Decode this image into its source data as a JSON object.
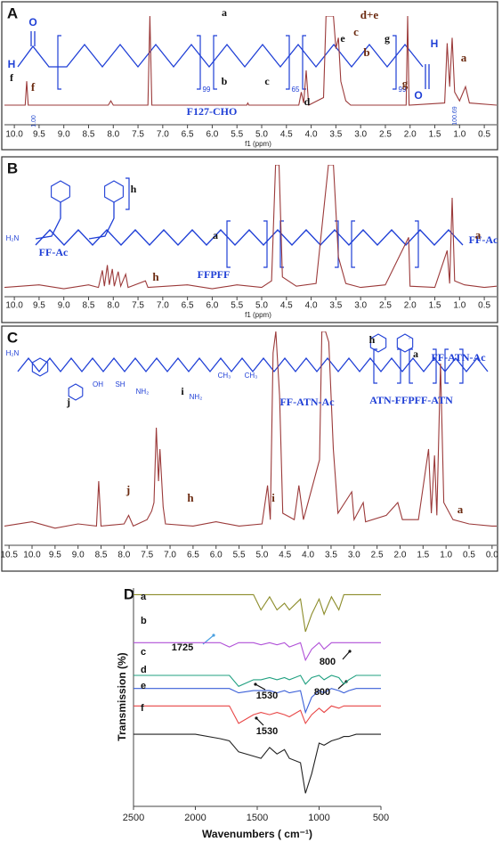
{
  "chart_data": [
    {
      "type": "line",
      "label": "A",
      "xlabel": "f1 (ppm)",
      "xlim": [
        10.2,
        0.25
      ],
      "ylim": [
        0,
        100
      ],
      "xticks": [
        {
          "value": 10,
          "label": "10.0"
        },
        9.5,
        {
          "value": 9,
          "label": "9.0"
        },
        8.5,
        {
          "value": 8,
          "label": "8.0"
        },
        7.5,
        {
          "value": 7,
          "label": "7.0"
        },
        6.5,
        {
          "value": 6,
          "label": "6.0"
        },
        5.5,
        {
          "value": 5,
          "label": "5.0"
        },
        4.5,
        {
          "value": 4,
          "label": "4.0"
        },
        3.5,
        {
          "value": 3,
          "label": "3.0"
        },
        2.5,
        {
          "value": 2,
          "label": "2.0"
        },
        1.5,
        {
          "value": 1,
          "label": "1.0"
        },
        0.5
      ],
      "x": [
        10.2,
        9.78,
        9.75,
        9.72,
        8.1,
        8.05,
        8.0,
        7.3,
        7.26,
        7.22,
        5.3,
        5.28,
        5.26,
        4.25,
        4.2,
        4.15,
        4.1,
        4.05,
        3.75,
        3.7,
        3.65,
        3.6,
        3.55,
        3.5,
        3.45,
        3.4,
        3.3,
        3.2,
        2.08,
        2.05,
        2.02,
        1.3,
        1.25,
        1.2,
        1.15,
        1.1,
        1.0,
        0.88,
        0.8,
        0.25
      ],
      "series": [
        {
          "color": "#9b3a3a",
          "values": [
            18,
            18,
            40,
            18,
            18,
            22,
            18,
            18,
            100,
            18,
            18,
            20,
            18,
            18,
            30,
            20,
            50,
            18,
            25,
            100,
            100,
            100,
            100,
            70,
            80,
            40,
            22,
            18,
            18,
            100,
            18,
            20,
            75,
            35,
            80,
            30,
            22,
            35,
            20,
            18
          ]
        }
      ],
      "annotations": [
        "O",
        "H",
        "f",
        "a",
        "b",
        "c",
        "d",
        "e",
        "g",
        "99",
        "65",
        "99",
        "H",
        "O",
        "F127-CHO",
        "f",
        "d+e",
        "c",
        "b",
        "g",
        "a",
        "1.00",
        "100.69"
      ]
    },
    {
      "type": "line",
      "label": "B",
      "xlabel": "f1 (ppm)",
      "xlim": [
        10.2,
        0.25
      ],
      "ylim": [
        0,
        100
      ],
      "xticks": [
        {
          "value": 10,
          "label": "10.0"
        },
        9.5,
        {
          "value": 9,
          "label": "9.0"
        },
        8.5,
        {
          "value": 8,
          "label": "8.0"
        },
        7.5,
        {
          "value": 7,
          "label": "7.0"
        },
        6.5,
        {
          "value": 6,
          "label": "6.0"
        },
        5.5,
        {
          "value": 5,
          "label": "5.0"
        },
        4.5,
        {
          "value": 4,
          "label": "4.0"
        },
        3.5,
        {
          "value": 3,
          "label": "3.0"
        },
        2.5,
        {
          "value": 2,
          "label": "2.0"
        },
        1.5,
        {
          "value": 1,
          "label": "1.0"
        },
        0.5
      ],
      "x": [
        10.2,
        9.5,
        9.0,
        8.5,
        8.3,
        8.22,
        8.18,
        8.12,
        8.08,
        8.02,
        7.98,
        7.9,
        7.85,
        7.75,
        7.7,
        7.35,
        7.3,
        6.5,
        6.0,
        5.5,
        5.0,
        4.8,
        4.72,
        4.65,
        4.58,
        4.3,
        3.9,
        3.65,
        3.55,
        3.45,
        3.3,
        3.0,
        2.5,
        2.03,
        2.0,
        1.5,
        1.25,
        1.2,
        1.15,
        1.1,
        0.9,
        0.5,
        0.25
      ],
      "series": [
        {
          "color": "#9b3a3a",
          "values": [
            7,
            9,
            6,
            9,
            7,
            20,
            8,
            24,
            9,
            21,
            8,
            19,
            8,
            17,
            7,
            12,
            7,
            9,
            6,
            9,
            7,
            12,
            100,
            100,
            15,
            8,
            10,
            100,
            100,
            30,
            10,
            7,
            9,
            45,
            8,
            7,
            35,
            10,
            75,
            12,
            9,
            7,
            8
          ]
        }
      ],
      "annotations": [
        "h",
        "H₂N",
        "FF-Ac",
        "a",
        "FFPFF",
        "FF-Ac",
        "h",
        "a"
      ]
    },
    {
      "type": "line",
      "label": "C",
      "xlim": [
        10.6,
        -0.1
      ],
      "ylim": [
        0,
        100
      ],
      "xticks": [
        10.5,
        {
          "value": 10,
          "label": "10.0"
        },
        9.5,
        {
          "value": 9,
          "label": "9.0"
        },
        8.5,
        {
          "value": 8,
          "label": "8.0"
        },
        7.5,
        {
          "value": 7,
          "label": "7.0"
        },
        6.5,
        {
          "value": 6,
          "label": "6.0"
        },
        5.5,
        {
          "value": 5,
          "label": "5.0"
        },
        4.5,
        {
          "value": 4,
          "label": "4.0"
        },
        3.5,
        {
          "value": 3,
          "label": "3.0"
        },
        2.5,
        {
          "value": 2,
          "label": "2.0"
        },
        1.5,
        {
          "value": 1,
          "label": "1.0"
        },
        0.5,
        {
          "value": 0,
          "label": "0.0"
        }
      ],
      "x": [
        10.6,
        10.0,
        9.5,
        9.0,
        8.6,
        8.55,
        8.5,
        8.0,
        7.9,
        7.8,
        7.5,
        7.4,
        7.35,
        7.3,
        7.25,
        7.22,
        7.15,
        7.1,
        6.5,
        6.0,
        5.5,
        5.0,
        4.88,
        4.82,
        4.76,
        4.7,
        4.62,
        4.55,
        4.3,
        4.2,
        4.1,
        3.75,
        3.7,
        3.62,
        3.55,
        3.45,
        3.35,
        3.05,
        3.0,
        2.8,
        2.75,
        2.3,
        2.05,
        1.95,
        1.6,
        1.38,
        1.32,
        1.25,
        1.2,
        1.12,
        1.05,
        0.85,
        0.5,
        0.0,
        -0.1
      ],
      "series": [
        {
          "color": "#9b3a3a",
          "values": [
            9,
            11,
            8,
            10,
            9,
            30,
            9,
            10,
            14,
            9,
            12,
            16,
            20,
            55,
            30,
            45,
            18,
            10,
            9,
            11,
            9,
            10,
            28,
            12,
            90,
            100,
            70,
            15,
            12,
            28,
            12,
            40,
            100,
            100,
            95,
            45,
            15,
            25,
            12,
            20,
            11,
            14,
            20,
            12,
            12,
            45,
            15,
            42,
            14,
            85,
            20,
            12,
            10,
            9,
            9
          ]
        }
      ],
      "annotations": [
        "H₂N",
        "j",
        "OH",
        "SH",
        "NH₂",
        "NH₂",
        "i",
        "CH₃",
        "CH₃",
        "FF-ATN-Ac",
        "h",
        "a",
        "FF-ATN-Ac",
        "ATN-FFPFF-ATN",
        "j",
        "h",
        "i",
        "a"
      ]
    },
    {
      "type": "line",
      "label": "D",
      "xlabel": "Wavenumbers ( cm⁻¹)",
      "ylabel": "Transmission (%)",
      "xlim": [
        2500,
        500
      ],
      "ylim": [
        0,
        100
      ],
      "xticks": [
        2500,
        2000,
        1500,
        1000,
        500
      ],
      "x": [
        2500,
        2000,
        1800,
        1725,
        1650,
        1530,
        1470,
        1400,
        1340,
        1280,
        1240,
        1150,
        1110,
        1060,
        1000,
        960,
        900,
        840,
        800,
        760,
        700,
        500
      ],
      "series": [
        {
          "name": "a",
          "color": "#8c8c2a",
          "values": [
            97,
            97,
            97,
            97,
            97,
            97,
            90,
            96,
            90,
            93,
            90,
            95,
            80,
            88,
            95,
            88,
            96,
            90,
            97,
            97,
            97,
            97
          ]
        },
        {
          "name": "b",
          "color": "#b050d8",
          "values": [
            75,
            75,
            75,
            73,
            75,
            75,
            74,
            75,
            74,
            75,
            73,
            75,
            67,
            72,
            75,
            72,
            75,
            75,
            75,
            75,
            75,
            75
          ]
        },
        {
          "name": "c",
          "color": "#20a080",
          "values": [
            60,
            60,
            60,
            60,
            55,
            58,
            58,
            59,
            58,
            59,
            58,
            60,
            56,
            59,
            60,
            58,
            60,
            59,
            56,
            58,
            60,
            60
          ]
        },
        {
          "name": "d",
          "color": "#3a5fd8",
          "values": [
            54,
            54,
            54,
            54,
            52,
            53,
            53,
            53,
            52,
            53,
            52,
            53,
            43,
            50,
            53,
            52,
            54,
            53,
            52,
            53,
            54,
            54
          ]
        },
        {
          "name": "e",
          "color": "#e84545",
          "values": [
            46,
            46,
            46,
            46,
            38,
            42,
            43,
            42,
            43,
            42,
            41,
            44,
            38,
            42,
            45,
            43,
            46,
            45,
            46,
            46,
            46,
            46
          ]
        },
        {
          "name": "f",
          "color": "#222222",
          "values": [
            33,
            33,
            31,
            30,
            25,
            23,
            22,
            27,
            24,
            26,
            22,
            20,
            6,
            15,
            29,
            28,
            30,
            31,
            32,
            32,
            33,
            33
          ]
        }
      ],
      "annotations": [
        "1725",
        "800",
        "800",
        "1530",
        "1530"
      ]
    }
  ]
}
